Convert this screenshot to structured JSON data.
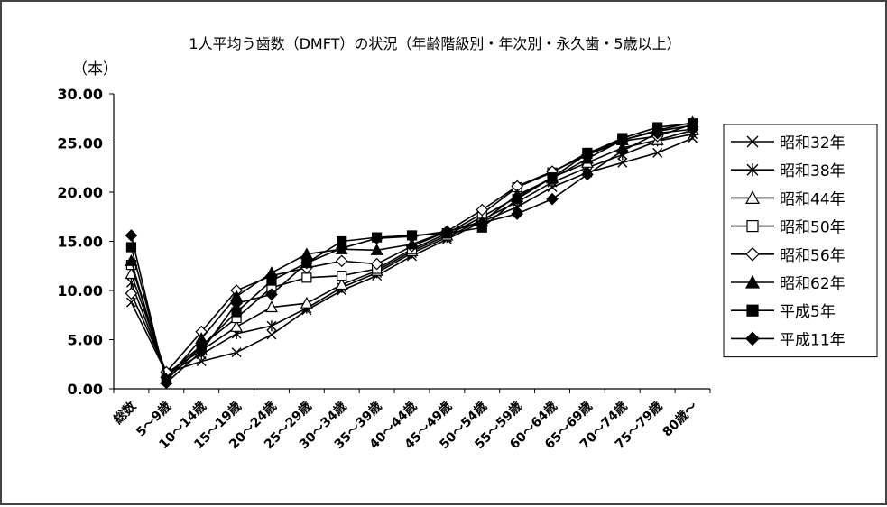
{
  "chart_data": {
    "type": "line",
    "title": "1人平均う歯数（DMFT）の状況（年齢階級別・年次別・永久歯・5歳以上）",
    "ylabel": "（本）",
    "xlabel": "",
    "ylim": [
      0,
      30
    ],
    "yticks": [
      "0.00",
      "5.00",
      "10.00",
      "15.00",
      "20.00",
      "25.00",
      "30.00"
    ],
    "grid": false,
    "legend_position": "right",
    "categories": [
      "総数",
      "5～9歳",
      "10～14歳",
      "15～19歳",
      "20～24歳",
      "25～29歳",
      "30～34歳",
      "35～39歳",
      "40～44歳",
      "45～49歳",
      "50～54歳",
      "55～59歳",
      "60～64歳",
      "65～69歳",
      "70～74歳",
      "75～79歳",
      "80歳～"
    ],
    "series": [
      {
        "name": "昭和32年",
        "marker": "x",
        "values": [
          8.8,
          1.6,
          2.8,
          3.7,
          5.5,
          8.0,
          10.0,
          11.5,
          13.5,
          15.2,
          17.0,
          18.5,
          20.5,
          22.0,
          23.0,
          24.0,
          25.5
        ]
      },
      {
        "name": "昭和38年",
        "marker": "star",
        "values": [
          10.8,
          1.5,
          3.5,
          5.6,
          6.4,
          8.2,
          10.3,
          11.8,
          13.8,
          15.4,
          17.2,
          19.0,
          21.0,
          22.5,
          23.8,
          25.2,
          25.9
        ]
      },
      {
        "name": "昭和44年",
        "marker": "triangle-open",
        "values": [
          11.7,
          1.6,
          3.9,
          6.3,
          8.3,
          8.7,
          10.6,
          12.0,
          14.0,
          15.6,
          17.5,
          19.5,
          21.5,
          23.0,
          24.5,
          25.3,
          26.3
        ]
      },
      {
        "name": "昭和50年",
        "marker": "square-open",
        "values": [
          12.6,
          1.4,
          4.4,
          7.2,
          10.3,
          11.3,
          11.5,
          12.2,
          14.2,
          15.8,
          17.8,
          20.5,
          22.0,
          24.0,
          25.3,
          26.2,
          26.8
        ]
      },
      {
        "name": "昭和56年",
        "marker": "diamond-open",
        "values": [
          9.7,
          1.7,
          5.8,
          10.0,
          11.5,
          12.3,
          13.0,
          12.7,
          14.5,
          16.0,
          18.2,
          20.6,
          22.1,
          23.8,
          25.2,
          25.7,
          26.9
        ]
      },
      {
        "name": "昭和62年",
        "marker": "triangle",
        "values": [
          13.0,
          1.0,
          5.1,
          9.4,
          11.8,
          13.7,
          14.2,
          14.1,
          14.7,
          16.0,
          17.0,
          19.7,
          21.4,
          23.4,
          25.3,
          26.3,
          27.1
        ]
      },
      {
        "name": "平成5年",
        "marker": "square",
        "values": [
          14.4,
          0.9,
          4.3,
          7.8,
          11.0,
          12.8,
          15.0,
          15.4,
          15.6,
          15.8,
          16.4,
          19.3,
          21.5,
          23.9,
          25.5,
          26.6,
          27.0
        ]
      },
      {
        "name": "平成11年",
        "marker": "diamond",
        "values": [
          15.6,
          0.6,
          3.8,
          8.7,
          9.6,
          12.8,
          14.3,
          15.3,
          15.5,
          16.0,
          16.9,
          17.8,
          19.3,
          21.8,
          24.2,
          26.0,
          26.4
        ]
      }
    ]
  }
}
